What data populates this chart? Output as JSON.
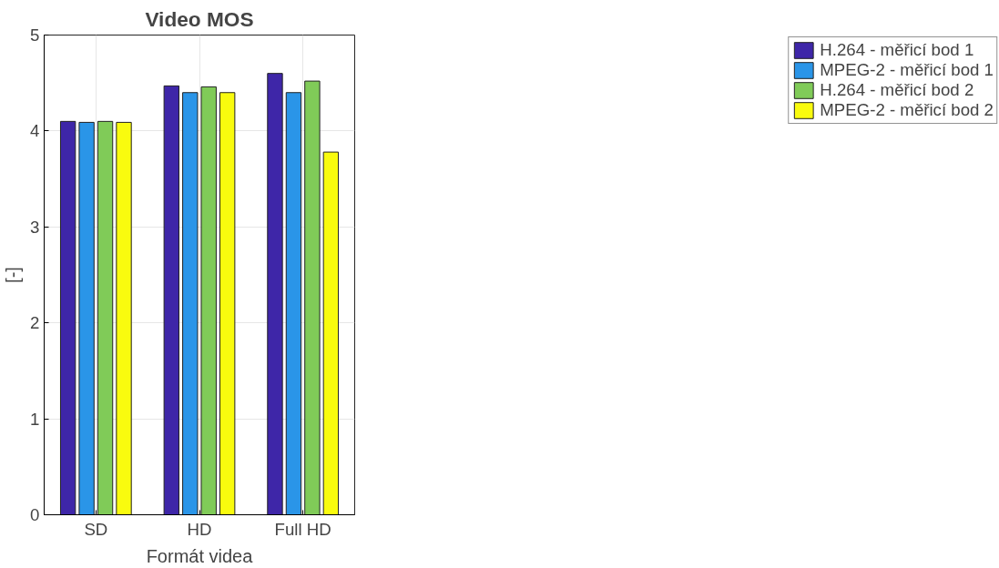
{
  "chart_data": {
    "type": "bar",
    "title": "Video MOS",
    "xlabel": "Formát videa",
    "ylabel": "[-]",
    "categories": [
      "SD",
      "HD",
      "Full HD"
    ],
    "series": [
      {
        "name": "H.264 - měřicí bod 1",
        "color": "#3e26a8",
        "values": [
          4.1,
          4.47,
          4.6
        ]
      },
      {
        "name": "MPEG-2 - měřicí bod 1",
        "color": "#2a95e8",
        "values": [
          4.09,
          4.4,
          4.4
        ]
      },
      {
        "name": "H.264 - měřicí bod 2",
        "color": "#80cb58",
        "values": [
          4.1,
          4.46,
          4.52
        ]
      },
      {
        "name": "MPEG-2 - měřicí bod 2",
        "color": "#f9fb0e",
        "values": [
          4.09,
          4.4,
          3.78
        ]
      }
    ],
    "ylim": [
      0,
      5
    ],
    "yticks": [
      0,
      1,
      2,
      3,
      4,
      5
    ],
    "grid": true,
    "legend": "right"
  }
}
